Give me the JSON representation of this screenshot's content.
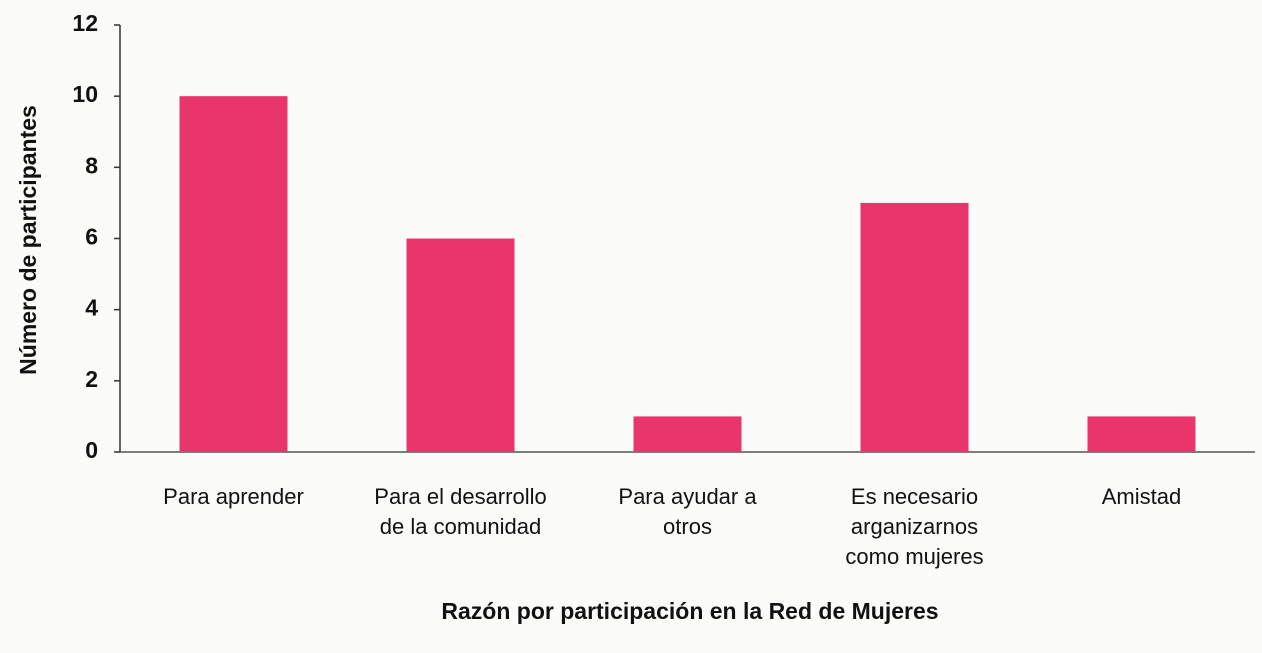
{
  "chart_data": {
    "type": "bar",
    "x_label": "Razón por participación en la Red de Mujeres",
    "y_label": "Número de participantes",
    "categories": [
      "Para aprender",
      "Para el desarrollo\nde la comunidad",
      "Para ayudar a\notros",
      "Es necesario\narganizarnos\ncomo mujeres",
      "Amistad"
    ],
    "values": [
      10,
      6,
      1,
      7,
      1
    ],
    "color": "#e8356b",
    "ylim": [
      0,
      12
    ],
    "yticks": [
      0,
      2,
      4,
      6,
      8,
      10,
      12
    ],
    "grid": false
  }
}
